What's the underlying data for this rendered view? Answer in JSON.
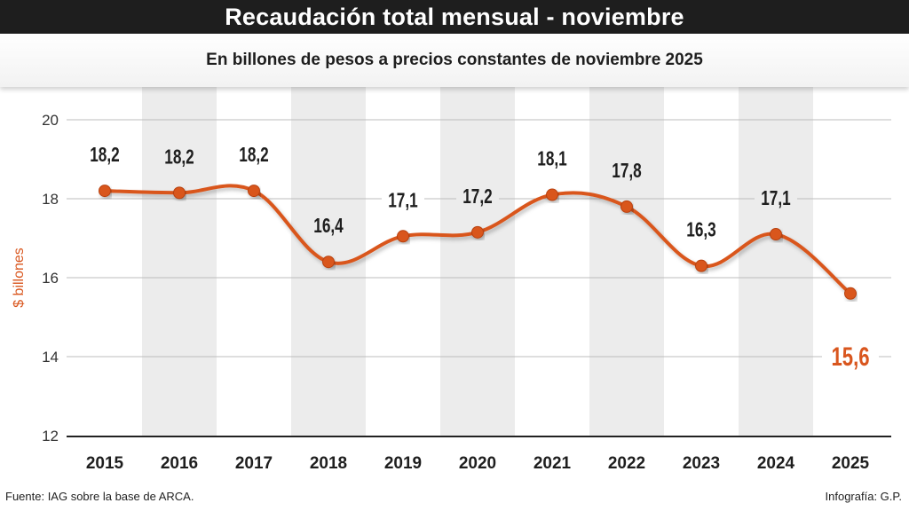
{
  "header": {
    "title": "Recaudación total mensual - noviembre",
    "subtitle": "En billones de pesos a precios constantes de noviembre 2025"
  },
  "footer": {
    "source": "Fuente: IAG sobre la base de ARCA.",
    "credit": "Infografía: G.P."
  },
  "colors": {
    "line": "#d9561e",
    "band": "#ececec",
    "grid": "#bdbdbd",
    "axis": "#222222",
    "highlight_label": "#d9561e"
  },
  "chart_data": {
    "type": "line",
    "title": "Recaudación total mensual - noviembre",
    "subtitle": "En billones de pesos a precios constantes de noviembre 2025",
    "ylabel": "$ billones",
    "xlabel": "",
    "ylim": [
      12,
      20
    ],
    "yticks": [
      "12",
      "14",
      "16",
      "18",
      "20"
    ],
    "categories": [
      "2015",
      "2016",
      "2017",
      "2018",
      "2019",
      "2020",
      "2021",
      "2022",
      "2023",
      "2024",
      "2025"
    ],
    "values": [
      18.2,
      18.15,
      18.2,
      16.4,
      17.05,
      17.15,
      18.1,
      17.8,
      16.3,
      17.1,
      15.6
    ],
    "value_labels": [
      "18,2",
      "18,2",
      "18,2",
      "16,4",
      "17,1",
      "17,2",
      "18,1",
      "17,8",
      "16,3",
      "17,1",
      "15,6"
    ],
    "grid": true,
    "alternating_bands": true
  }
}
